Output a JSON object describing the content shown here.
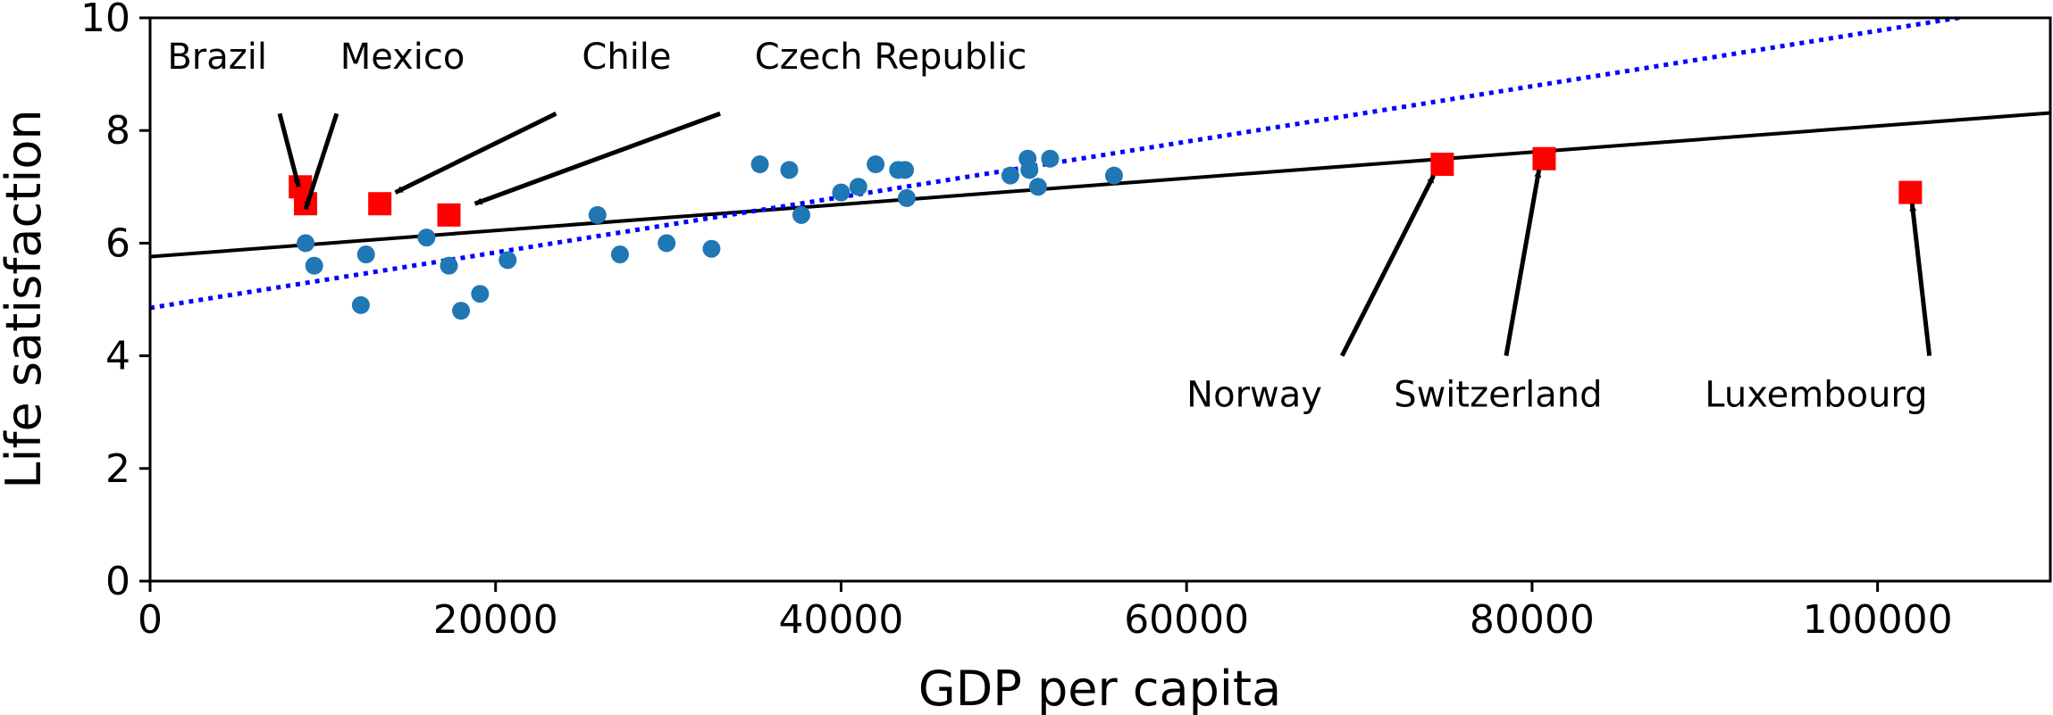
{
  "chart_data": {
    "type": "scatter",
    "xlabel": "GDP per capita",
    "ylabel": "Life satisfaction",
    "xlim": [
      0,
      110000
    ],
    "ylim": [
      0,
      10
    ],
    "xticks": [
      0,
      20000,
      40000,
      60000,
      80000,
      100000
    ],
    "yticks": [
      0,
      2,
      4,
      6,
      8,
      10
    ],
    "grid": false,
    "series": [
      {
        "kind": "scatter",
        "marker": "circle",
        "color": "#1f77b4",
        "points": [
          [
            9000,
            6.0
          ],
          [
            9500,
            5.6
          ],
          [
            12200,
            4.9
          ],
          [
            12500,
            5.8
          ],
          [
            16000,
            6.1
          ],
          [
            17300,
            5.6
          ],
          [
            18000,
            4.8
          ],
          [
            19100,
            5.1
          ],
          [
            20700,
            5.7
          ],
          [
            25900,
            6.5
          ],
          [
            27200,
            5.8
          ],
          [
            29900,
            6.0
          ],
          [
            32500,
            5.9
          ],
          [
            35300,
            7.4
          ],
          [
            37000,
            7.3
          ],
          [
            37700,
            6.5
          ],
          [
            40000,
            6.9
          ],
          [
            41000,
            7.0
          ],
          [
            42000,
            7.4
          ],
          [
            43300,
            7.3
          ],
          [
            43700,
            7.3
          ],
          [
            43800,
            6.8
          ],
          [
            49800,
            7.2
          ],
          [
            50800,
            7.5
          ],
          [
            50900,
            7.3
          ],
          [
            51400,
            7.0
          ],
          [
            52100,
            7.5
          ],
          [
            55800,
            7.2
          ]
        ]
      },
      {
        "kind": "scatter",
        "marker": "square",
        "color": "#ff0000",
        "points": [
          [
            8700,
            7.0
          ],
          [
            9000,
            6.7
          ],
          [
            13300,
            6.7
          ],
          [
            17300,
            6.5
          ],
          [
            74800,
            7.4
          ],
          [
            80700,
            7.5
          ],
          [
            101900,
            6.9
          ]
        ]
      },
      {
        "kind": "line",
        "style": "solid",
        "color": "#000000",
        "intercept": 5.76,
        "slope": 2.32e-05
      },
      {
        "kind": "line",
        "style": "dotted",
        "color": "#0000ff",
        "intercept": 4.85,
        "slope": 4.92e-05
      }
    ],
    "annotations": [
      {
        "text": "Brazil",
        "xy": [
          8600,
          7.0
        ],
        "xytext": [
          1000,
          9.1
        ],
        "tail": [
          7500,
          8.3
        ]
      },
      {
        "text": "Mexico",
        "xy": [
          9000,
          6.6
        ],
        "xytext": [
          11000,
          9.1
        ],
        "tail": [
          10800,
          8.3
        ]
      },
      {
        "text": "Chile",
        "xy": [
          14200,
          6.9
        ],
        "xytext": [
          25000,
          9.1
        ],
        "tail": [
          23500,
          8.3
        ]
      },
      {
        "text": "Czech Republic",
        "xy": [
          18800,
          6.7
        ],
        "xytext": [
          35000,
          9.1
        ],
        "tail": [
          33000,
          8.3
        ]
      },
      {
        "text": "Norway",
        "xy": [
          74300,
          7.2
        ],
        "xytext": [
          60000,
          3.1
        ],
        "tail": [
          69000,
          4.0
        ]
      },
      {
        "text": "Switzerland",
        "xy": [
          80400,
          7.3
        ],
        "xytext": [
          72000,
          3.1
        ],
        "tail": [
          78500,
          4.0
        ]
      },
      {
        "text": "Luxembourg",
        "xy": [
          102000,
          6.7
        ],
        "xytext": [
          90000,
          3.1
        ],
        "tail": [
          103000,
          4.0
        ]
      }
    ]
  }
}
